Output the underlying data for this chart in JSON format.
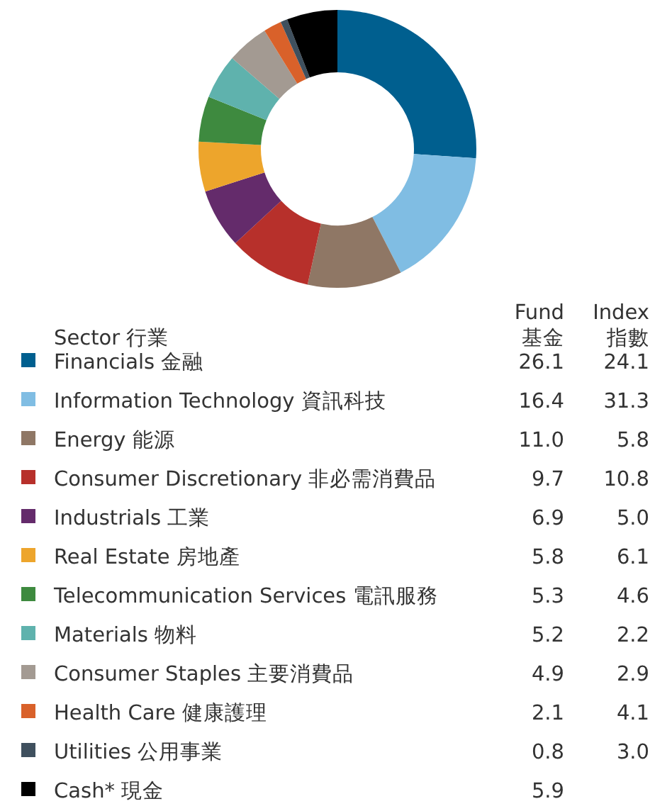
{
  "chart_data": [
    {
      "type": "donut",
      "legend_title": "Sector 行業",
      "legend": "bottom",
      "categories": [
        "Financials 金融",
        "Information Technology 資訊科技",
        "Energy 能源",
        "Consumer Discretionary 非必需消費品",
        "Industrials 工業",
        "Real Estate 房地產",
        "Telecommunication Services 電訊服務",
        "Materials 物料",
        "Consumer Staples 主要消費品",
        "Health Care 健康護理",
        "Utilities 公用事業",
        "Cash* 現金"
      ],
      "colors": [
        "#005f8f",
        "#80bde3",
        "#8f7765",
        "#b7302b",
        "#642b6b",
        "#eda52c",
        "#3e8a3f",
        "#5fb2ad",
        "#a39a92",
        "#d9612a",
        "#3f505e",
        "#000000"
      ],
      "series": [
        {
          "name": "Fund 基金",
          "values": [
            26.1,
            16.4,
            11.0,
            9.7,
            6.9,
            5.8,
            5.3,
            5.2,
            4.9,
            2.1,
            0.8,
            5.9
          ],
          "value_labels": [
            "26.1",
            "16.4",
            "11.0",
            "9.7",
            "6.9",
            "5.8",
            "5.3",
            "5.2",
            "4.9",
            "2.1",
            "0.8",
            "5.9"
          ]
        }
      ]
    },
    {
      "type": "other",
      "title": "Index 指數",
      "value_labels": [
        "24.1",
        "31.3",
        "5.8",
        "10.8",
        "5.0",
        "6.1",
        "4.6",
        "2.2",
        "2.9",
        "4.1",
        "3.0",
        null
      ]
    }
  ]
}
